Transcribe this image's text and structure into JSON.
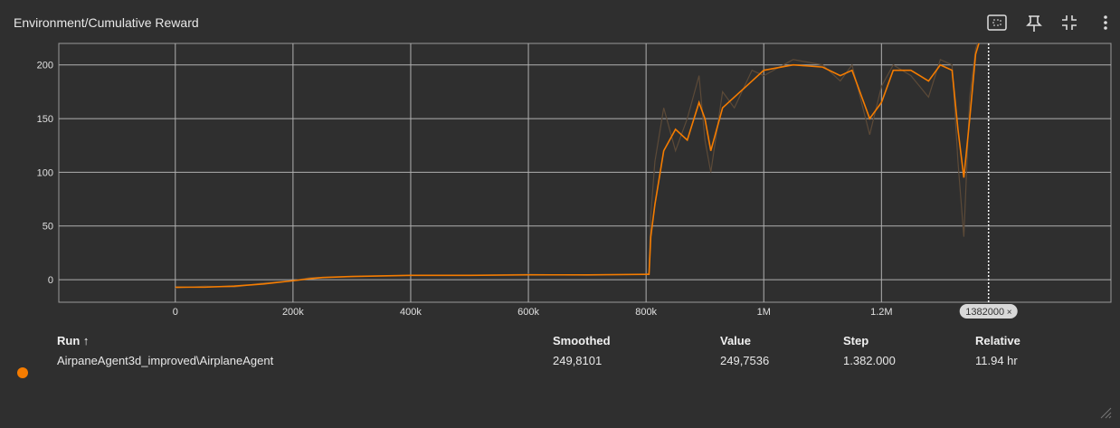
{
  "header": {
    "title": "Environment/Cumulative Reward"
  },
  "chart_data": {
    "type": "line",
    "x": [
      0,
      50000,
      100000,
      150000,
      200000,
      230000,
      250000,
      300000,
      400000,
      500000,
      600000,
      700000,
      800000,
      805000,
      808000,
      815000,
      830000,
      850000,
      870000,
      890000,
      900000,
      910000,
      930000,
      950000,
      980000,
      1000000,
      1050000,
      1100000,
      1130000,
      1150000,
      1180000,
      1200000,
      1220000,
      1250000,
      1280000,
      1300000,
      1320000,
      1330000,
      1340000,
      1350000,
      1360000,
      1382000
    ],
    "series": [
      {
        "name": "AirpaneAgent3d_improved\\AirplaneAgent raw",
        "color": "#5c4a38",
        "values": [
          -8,
          -6,
          -7,
          -3,
          -1,
          2,
          2,
          3,
          4,
          4,
          5,
          4,
          5,
          6,
          60,
          110,
          160,
          120,
          150,
          190,
          130,
          100,
          175,
          160,
          195,
          190,
          205,
          200,
          185,
          200,
          135,
          180,
          200,
          190,
          170,
          205,
          200,
          110,
          40,
          170,
          215,
          249.7536
        ]
      },
      {
        "name": "AirpaneAgent3d_improved\\AirplaneAgent",
        "color": "#f57c00",
        "values": [
          -7,
          -7,
          -6,
          -4,
          -1,
          1,
          2,
          3,
          4,
          4,
          4.5,
          4.5,
          5,
          5,
          40,
          70,
          120,
          140,
          130,
          165,
          150,
          120,
          160,
          170,
          185,
          195,
          200,
          198,
          190,
          195,
          150,
          165,
          195,
          195,
          185,
          200,
          195,
          140,
          95,
          150,
          210,
          249.8101
        ]
      }
    ],
    "xlim": [
      -198000,
      1590000
    ],
    "xticks": [
      {
        "value": 0,
        "label": "0"
      },
      {
        "value": 200000,
        "label": "200k"
      },
      {
        "value": 400000,
        "label": "400k"
      },
      {
        "value": 600000,
        "label": "600k"
      },
      {
        "value": 800000,
        "label": "800k"
      },
      {
        "value": 1000000,
        "label": "1M"
      },
      {
        "value": 1200000,
        "label": "1.2M"
      }
    ],
    "ylim": [
      -21,
      220
    ],
    "yticks": [
      0,
      50,
      100,
      150,
      200
    ],
    "grid": true,
    "hover_step": 1382000
  },
  "table": {
    "headers": [
      "Run ↑",
      "Smoothed",
      "Value",
      "Step",
      "Relative"
    ],
    "rows": [
      [
        "AirpaneAgent3d_improved\\AirplaneAgent",
        "249,8101",
        "249,7536",
        "1.382.000",
        "11.94 hr"
      ]
    ]
  }
}
